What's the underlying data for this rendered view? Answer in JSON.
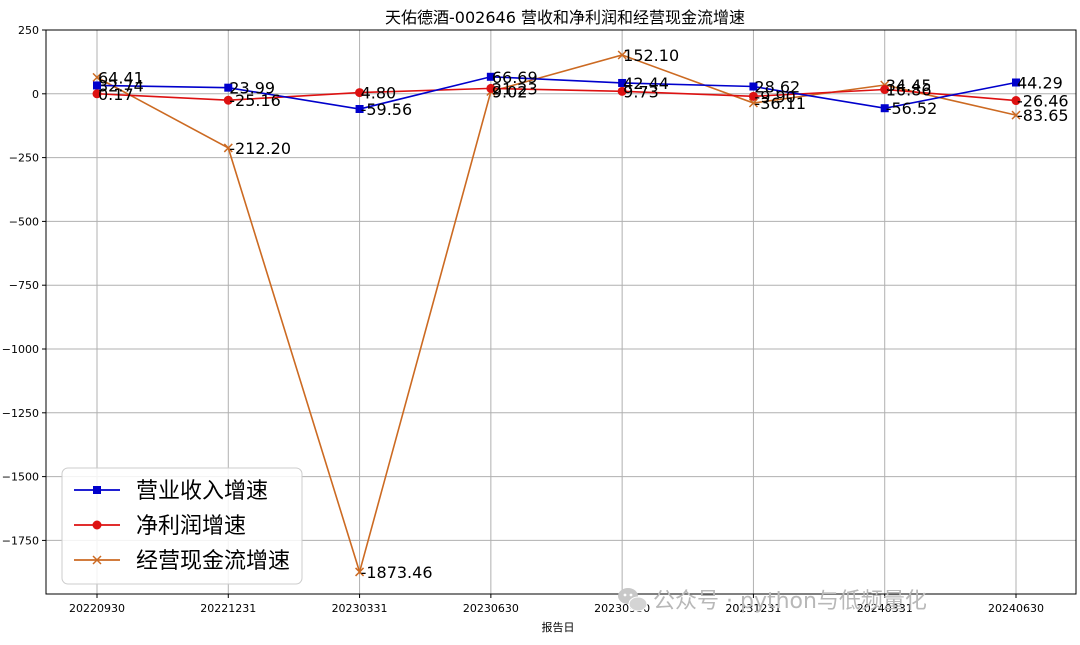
{
  "chart_data": {
    "type": "line",
    "title": "天佑德酒-002646 营收和净利润和经营现金流增速",
    "xlabel": "报告日",
    "ylabel": "",
    "categories": [
      "20220930",
      "20221231",
      "20230331",
      "20230630",
      "20230930",
      "20231231",
      "20240331",
      "20240630"
    ],
    "ylim": [
      -1960,
      250
    ],
    "yticks": [
      250,
      0,
      -250,
      -500,
      -750,
      -1000,
      -1250,
      -1500,
      -1750
    ],
    "grid": true,
    "legend_position": "bottom-left",
    "series": [
      {
        "name": "营业收入增速",
        "values": [
          32.74,
          23.99,
          -59.56,
          66.69,
          42.44,
          28.62,
          -56.52,
          44.29
        ],
        "labels": [
          "32.74",
          "23.99",
          "-59.56",
          "66.69",
          "42.44",
          "28.62",
          "-56.52",
          "44.29"
        ],
        "color": "#0000cc",
        "marker": "square"
      },
      {
        "name": "净利润增速",
        "values": [
          0.17,
          -25.16,
          4.8,
          21.23,
          9.73,
          -9.9,
          16.86,
          -26.46
        ],
        "labels": [
          "0.17",
          "-25.16",
          "4.80",
          "21.23",
          "9.73",
          "-9.90",
          "16.86",
          "-26.46"
        ],
        "color": "#dd1111",
        "marker": "circle"
      },
      {
        "name": "经营现金流增速",
        "values": [
          64.41,
          -212.2,
          -1873.46,
          9.02,
          152.1,
          -36.11,
          34.45,
          -83.65
        ],
        "labels": [
          "64.41",
          "-212.20",
          "-1873.46",
          "9.02",
          "152.10",
          "-36.11",
          "34.45",
          "-83.65"
        ],
        "color": "#cc6a22",
        "marker": "x"
      }
    ]
  },
  "watermark": {
    "icon": "wechat-icon",
    "text": "公众号 · python与低频量化"
  }
}
